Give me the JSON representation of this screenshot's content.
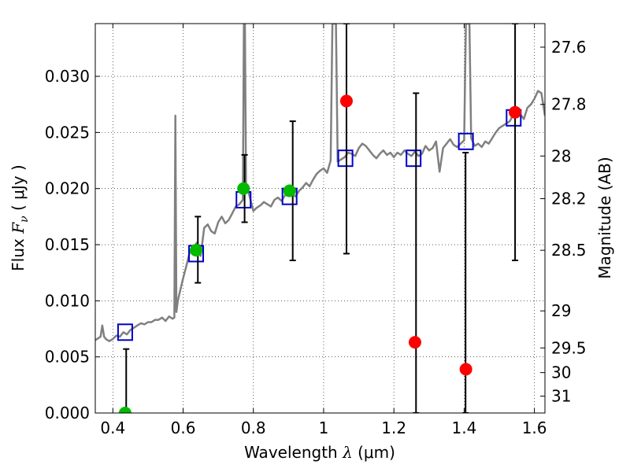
{
  "chart_data": {
    "type": "scatter",
    "xlabel_prefix": "Wavelength",
    "xlabel_math": "λ",
    "xlabel_unit": "(μm)",
    "ylabel_prefix": "Flux",
    "ylabel_math": "F",
    "ylabel_sub": "ν",
    "ylabel_unit": "( μJy )",
    "ylabel_right": "Magnitude (AB)",
    "xlim": [
      0.35,
      1.63
    ],
    "ylim": [
      0.0,
      0.0347
    ],
    "grid": true,
    "x_ticks": [
      {
        "value": 0.4,
        "label": "0.4"
      },
      {
        "value": 0.6,
        "label": "0.6"
      },
      {
        "value": 0.8,
        "label": "0.8"
      },
      {
        "value": 1.0,
        "label": "1"
      },
      {
        "value": 1.2,
        "label": "1.2"
      },
      {
        "value": 1.4,
        "label": "1.4"
      },
      {
        "value": 1.6,
        "label": "1.6"
      }
    ],
    "y_ticks": [
      {
        "value": 0.0,
        "label": "0.000"
      },
      {
        "value": 0.005,
        "label": "0.005"
      },
      {
        "value": 0.01,
        "label": "0.010"
      },
      {
        "value": 0.015,
        "label": "0.015"
      },
      {
        "value": 0.02,
        "label": "0.020"
      },
      {
        "value": 0.025,
        "label": "0.025"
      },
      {
        "value": 0.03,
        "label": "0.030"
      }
    ],
    "right_ticks": [
      {
        "label": "27.6",
        "flux": 0.0326
      },
      {
        "label": "27.8",
        "flux": 0.0275
      },
      {
        "label": "28",
        "flux": 0.0229
      },
      {
        "label": "28.2",
        "flux": 0.0191
      },
      {
        "label": "28.5",
        "flux": 0.0145
      },
      {
        "label": "29",
        "flux": 0.0091
      },
      {
        "label": "29.5",
        "flux": 0.0058
      },
      {
        "label": "30",
        "flux": 0.0036
      },
      {
        "label": "31",
        "flux": 0.0015
      }
    ],
    "colors": {
      "spectrum": "#808080",
      "model_box": "#0000cc",
      "detection": "#00bb00",
      "nondetection": "#ff0000",
      "errorbar": "#000000"
    },
    "series": [
      {
        "role": "spectrum",
        "points": [
          [
            0.35,
            0.0065
          ],
          [
            0.36,
            0.0067
          ],
          [
            0.365,
            0.0068
          ],
          [
            0.37,
            0.0078
          ],
          [
            0.375,
            0.0068
          ],
          [
            0.38,
            0.0066
          ],
          [
            0.39,
            0.0064
          ],
          [
            0.4,
            0.0066
          ],
          [
            0.41,
            0.0069
          ],
          [
            0.42,
            0.0068
          ],
          [
            0.43,
            0.0072
          ],
          [
            0.44,
            0.007
          ],
          [
            0.45,
            0.0074
          ],
          [
            0.46,
            0.0076
          ],
          [
            0.47,
            0.0078
          ],
          [
            0.48,
            0.008
          ],
          [
            0.49,
            0.0079
          ],
          [
            0.5,
            0.0081
          ],
          [
            0.51,
            0.0081
          ],
          [
            0.52,
            0.0083
          ],
          [
            0.53,
            0.0083
          ],
          [
            0.54,
            0.0085
          ],
          [
            0.55,
            0.0082
          ],
          [
            0.56,
            0.0086
          ],
          [
            0.57,
            0.0084
          ],
          [
            0.575,
            0.0085
          ],
          [
            0.578,
            0.0265
          ],
          [
            0.581,
            0.009
          ],
          [
            0.585,
            0.01
          ],
          [
            0.59,
            0.0107
          ],
          [
            0.6,
            0.012
          ],
          [
            0.61,
            0.0132
          ],
          [
            0.62,
            0.0145
          ],
          [
            0.63,
            0.0148
          ],
          [
            0.64,
            0.0152
          ],
          [
            0.65,
            0.014
          ],
          [
            0.66,
            0.0165
          ],
          [
            0.67,
            0.0168
          ],
          [
            0.68,
            0.0162
          ],
          [
            0.69,
            0.016
          ],
          [
            0.7,
            0.017
          ],
          [
            0.71,
            0.0175
          ],
          [
            0.72,
            0.0169
          ],
          [
            0.73,
            0.0172
          ],
          [
            0.74,
            0.0178
          ],
          [
            0.75,
            0.0184
          ],
          [
            0.76,
            0.0186
          ],
          [
            0.77,
            0.019
          ],
          [
            0.773,
            0.0347
          ],
          [
            0.776,
            0.0347
          ],
          [
            0.779,
            0.0205
          ],
          [
            0.79,
            0.0192
          ],
          [
            0.8,
            0.018
          ],
          [
            0.81,
            0.0183
          ],
          [
            0.82,
            0.0185
          ],
          [
            0.83,
            0.0188
          ],
          [
            0.84,
            0.0186
          ],
          [
            0.85,
            0.0184
          ],
          [
            0.86,
            0.019
          ],
          [
            0.87,
            0.0192
          ],
          [
            0.88,
            0.0189
          ],
          [
            0.89,
            0.0194
          ],
          [
            0.9,
            0.0196
          ],
          [
            0.91,
            0.0195
          ],
          [
            0.92,
            0.0193
          ],
          [
            0.93,
            0.0198
          ],
          [
            0.94,
            0.0201
          ],
          [
            0.95,
            0.0205
          ],
          [
            0.96,
            0.0202
          ],
          [
            0.97,
            0.0208
          ],
          [
            0.98,
            0.0213
          ],
          [
            0.99,
            0.0216
          ],
          [
            1.0,
            0.0218
          ],
          [
            1.01,
            0.0214
          ],
          [
            1.02,
            0.0225
          ],
          [
            1.025,
            0.0347
          ],
          [
            1.035,
            0.0347
          ],
          [
            1.04,
            0.0224
          ],
          [
            1.05,
            0.0226
          ],
          [
            1.06,
            0.0228
          ],
          [
            1.07,
            0.0232
          ],
          [
            1.08,
            0.0231
          ],
          [
            1.09,
            0.0229
          ],
          [
            1.1,
            0.0236
          ],
          [
            1.11,
            0.024
          ],
          [
            1.12,
            0.0238
          ],
          [
            1.13,
            0.0234
          ],
          [
            1.14,
            0.023
          ],
          [
            1.15,
            0.0227
          ],
          [
            1.16,
            0.0231
          ],
          [
            1.17,
            0.0234
          ],
          [
            1.18,
            0.023
          ],
          [
            1.19,
            0.0232
          ],
          [
            1.2,
            0.0228
          ],
          [
            1.21,
            0.0232
          ],
          [
            1.22,
            0.023
          ],
          [
            1.23,
            0.0234
          ],
          [
            1.24,
            0.0231
          ],
          [
            1.25,
            0.0229
          ],
          [
            1.26,
            0.0233
          ],
          [
            1.27,
            0.0229
          ],
          [
            1.28,
            0.0231
          ],
          [
            1.29,
            0.0238
          ],
          [
            1.3,
            0.0234
          ],
          [
            1.31,
            0.0236
          ],
          [
            1.32,
            0.0242
          ],
          [
            1.33,
            0.0215
          ],
          [
            1.34,
            0.0236
          ],
          [
            1.35,
            0.024
          ],
          [
            1.36,
            0.0244
          ],
          [
            1.37,
            0.0239
          ],
          [
            1.38,
            0.0237
          ],
          [
            1.39,
            0.024
          ],
          [
            1.4,
            0.0243
          ],
          [
            1.405,
            0.0347
          ],
          [
            1.415,
            0.0347
          ],
          [
            1.42,
            0.0245
          ],
          [
            1.43,
            0.0238
          ],
          [
            1.44,
            0.024
          ],
          [
            1.45,
            0.0237
          ],
          [
            1.46,
            0.0242
          ],
          [
            1.47,
            0.024
          ],
          [
            1.48,
            0.0245
          ],
          [
            1.49,
            0.025
          ],
          [
            1.5,
            0.0254
          ],
          [
            1.51,
            0.0256
          ],
          [
            1.52,
            0.0258
          ],
          [
            1.53,
            0.026
          ],
          [
            1.54,
            0.0266
          ],
          [
            1.55,
            0.027
          ],
          [
            1.56,
            0.0266
          ],
          [
            1.57,
            0.0262
          ],
          [
            1.58,
            0.0272
          ],
          [
            1.59,
            0.0275
          ],
          [
            1.6,
            0.028
          ],
          [
            1.61,
            0.0287
          ],
          [
            1.62,
            0.0285
          ],
          [
            1.63,
            0.0265
          ]
        ]
      },
      {
        "role": "model_boxes",
        "points": [
          [
            0.435,
            0.0072
          ],
          [
            0.637,
            0.0142
          ],
          [
            0.772,
            0.019
          ],
          [
            0.903,
            0.0193
          ],
          [
            1.062,
            0.0227
          ],
          [
            1.256,
            0.0227
          ],
          [
            1.405,
            0.0242
          ],
          [
            1.541,
            0.0263
          ]
        ]
      },
      {
        "role": "errorbars",
        "bars": [
          {
            "x": 0.438,
            "lo": 0.0,
            "hi": 0.0057
          },
          {
            "x": 0.642,
            "lo": 0.0116,
            "hi": 0.0175
          },
          {
            "x": 0.775,
            "lo": 0.017,
            "hi": 0.023
          },
          {
            "x": 0.912,
            "lo": 0.0136,
            "hi": 0.026
          },
          {
            "x": 1.065,
            "lo": 0.0142,
            "hi": 0.0347
          },
          {
            "x": 1.263,
            "lo": 0.0,
            "hi": 0.0285
          },
          {
            "x": 1.404,
            "lo": 0.0,
            "hi": 0.0232
          },
          {
            "x": 1.545,
            "lo": 0.0136,
            "hi": 0.0347
          }
        ]
      },
      {
        "role": "detections",
        "points": [
          [
            0.435,
            0.0
          ],
          [
            0.637,
            0.0145
          ],
          [
            0.772,
            0.02
          ],
          [
            0.903,
            0.0198
          ]
        ]
      },
      {
        "role": "nondetections",
        "points": [
          [
            1.065,
            0.0278
          ],
          [
            1.26,
            0.0063
          ],
          [
            1.405,
            0.0039
          ],
          [
            1.545,
            0.0268
          ]
        ]
      }
    ]
  }
}
